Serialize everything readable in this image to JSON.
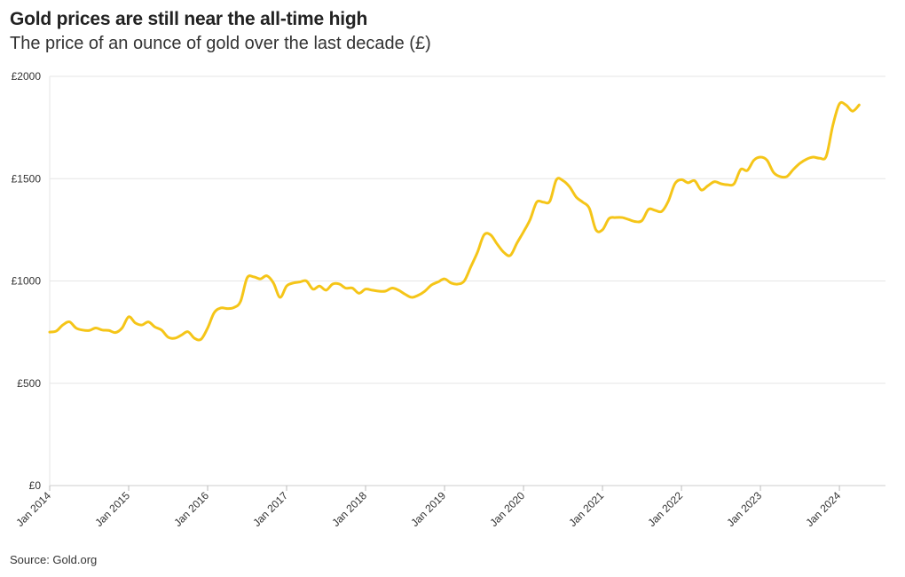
{
  "title": "Gold prices are still near the all-time high",
  "subtitle": "The price of an ounce of gold over the last decade (£)",
  "source": "Source: Gold.org",
  "colors": {
    "line": "#f5c518",
    "grid": "#e6e6e6",
    "text": "#333333"
  },
  "chart_data": {
    "type": "line",
    "title": "Gold prices are still near the all-time high",
    "subtitle": "The price of an ounce of gold over the last decade (£)",
    "xlabel": "",
    "ylabel": "",
    "ylim": [
      0,
      2000
    ],
    "xlim": [
      "2014-01",
      "2024-08"
    ],
    "grid": "horizontal",
    "y_ticks": [
      {
        "value": 0,
        "label": "£0"
      },
      {
        "value": 500,
        "label": "£500"
      },
      {
        "value": 1000,
        "label": "£1000"
      },
      {
        "value": 1500,
        "label": "£1500"
      },
      {
        "value": 2000,
        "label": "£2000"
      }
    ],
    "x_ticks": [
      {
        "date": "2014-01",
        "label": "Jan 2014"
      },
      {
        "date": "2015-01",
        "label": "Jan 2015"
      },
      {
        "date": "2016-01",
        "label": "Jan 2016"
      },
      {
        "date": "2017-01",
        "label": "Jan 2017"
      },
      {
        "date": "2018-01",
        "label": "Jan 2018"
      },
      {
        "date": "2019-01",
        "label": "Jan 2019"
      },
      {
        "date": "2020-01",
        "label": "Jan 2020"
      },
      {
        "date": "2021-01",
        "label": "Jan 2021"
      },
      {
        "date": "2022-01",
        "label": "Jan 2022"
      },
      {
        "date": "2023-01",
        "label": "Jan 2023"
      },
      {
        "date": "2024-01",
        "label": "Jan 2024"
      }
    ],
    "series": [
      {
        "values": [
          [
            "2014-01",
            750
          ],
          [
            "2014-02",
            755
          ],
          [
            "2014-03",
            785
          ],
          [
            "2014-04",
            800
          ],
          [
            "2014-05",
            770
          ],
          [
            "2014-06",
            760
          ],
          [
            "2014-07",
            758
          ],
          [
            "2014-08",
            770
          ],
          [
            "2014-09",
            760
          ],
          [
            "2014-10",
            758
          ],
          [
            "2014-11",
            748
          ],
          [
            "2014-12",
            770
          ],
          [
            "2015-01",
            825
          ],
          [
            "2015-02",
            795
          ],
          [
            "2015-03",
            785
          ],
          [
            "2015-04",
            800
          ],
          [
            "2015-05",
            775
          ],
          [
            "2015-06",
            760
          ],
          [
            "2015-07",
            725
          ],
          [
            "2015-08",
            720
          ],
          [
            "2015-09",
            735
          ],
          [
            "2015-10",
            752
          ],
          [
            "2015-11",
            720
          ],
          [
            "2015-12",
            715
          ],
          [
            "2016-01",
            770
          ],
          [
            "2016-02",
            845
          ],
          [
            "2016-03",
            868
          ],
          [
            "2016-04",
            865
          ],
          [
            "2016-05",
            870
          ],
          [
            "2016-06",
            900
          ],
          [
            "2016-07",
            1015
          ],
          [
            "2016-08",
            1020
          ],
          [
            "2016-09",
            1010
          ],
          [
            "2016-10",
            1025
          ],
          [
            "2016-11",
            990
          ],
          [
            "2016-12",
            920
          ],
          [
            "2017-01",
            975
          ],
          [
            "2017-02",
            990
          ],
          [
            "2017-03",
            995
          ],
          [
            "2017-04",
            1000
          ],
          [
            "2017-05",
            960
          ],
          [
            "2017-06",
            975
          ],
          [
            "2017-07",
            955
          ],
          [
            "2017-08",
            985
          ],
          [
            "2017-09",
            985
          ],
          [
            "2017-10",
            965
          ],
          [
            "2017-11",
            965
          ],
          [
            "2017-12",
            940
          ],
          [
            "2018-01",
            960
          ],
          [
            "2018-02",
            955
          ],
          [
            "2018-03",
            950
          ],
          [
            "2018-04",
            950
          ],
          [
            "2018-05",
            965
          ],
          [
            "2018-06",
            955
          ],
          [
            "2018-07",
            935
          ],
          [
            "2018-08",
            920
          ],
          [
            "2018-09",
            930
          ],
          [
            "2018-10",
            950
          ],
          [
            "2018-11",
            980
          ],
          [
            "2018-12",
            995
          ],
          [
            "2019-01",
            1010
          ],
          [
            "2019-02",
            990
          ],
          [
            "2019-03",
            985
          ],
          [
            "2019-04",
            1000
          ],
          [
            "2019-05",
            1070
          ],
          [
            "2019-06",
            1140
          ],
          [
            "2019-07",
            1225
          ],
          [
            "2019-08",
            1225
          ],
          [
            "2019-09",
            1180
          ],
          [
            "2019-10",
            1140
          ],
          [
            "2019-11",
            1125
          ],
          [
            "2019-12",
            1185
          ],
          [
            "2020-01",
            1240
          ],
          [
            "2020-02",
            1300
          ],
          [
            "2020-03",
            1385
          ],
          [
            "2020-04",
            1385
          ],
          [
            "2020-05",
            1390
          ],
          [
            "2020-06",
            1495
          ],
          [
            "2020-07",
            1490
          ],
          [
            "2020-08",
            1460
          ],
          [
            "2020-09",
            1410
          ],
          [
            "2020-10",
            1385
          ],
          [
            "2020-11",
            1355
          ],
          [
            "2020-12",
            1250
          ],
          [
            "2021-01",
            1250
          ],
          [
            "2021-02",
            1305
          ],
          [
            "2021-03",
            1310
          ],
          [
            "2021-04",
            1310
          ],
          [
            "2021-05",
            1300
          ],
          [
            "2021-06",
            1290
          ],
          [
            "2021-07",
            1295
          ],
          [
            "2021-08",
            1350
          ],
          [
            "2021-09",
            1345
          ],
          [
            "2021-10",
            1340
          ],
          [
            "2021-11",
            1390
          ],
          [
            "2021-12",
            1475
          ],
          [
            "2022-01",
            1495
          ],
          [
            "2022-02",
            1480
          ],
          [
            "2022-03",
            1490
          ],
          [
            "2022-04",
            1445
          ],
          [
            "2022-05",
            1465
          ],
          [
            "2022-06",
            1485
          ],
          [
            "2022-07",
            1475
          ],
          [
            "2022-08",
            1470
          ],
          [
            "2022-09",
            1475
          ],
          [
            "2022-10",
            1545
          ],
          [
            "2022-11",
            1540
          ],
          [
            "2022-12",
            1590
          ],
          [
            "2023-01",
            1605
          ],
          [
            "2023-02",
            1590
          ],
          [
            "2023-03",
            1530
          ],
          [
            "2023-04",
            1510
          ],
          [
            "2023-05",
            1510
          ],
          [
            "2023-06",
            1545
          ],
          [
            "2023-07",
            1575
          ],
          [
            "2023-08",
            1595
          ],
          [
            "2023-09",
            1605
          ],
          [
            "2023-10",
            1600
          ],
          [
            "2023-11",
            1610
          ],
          [
            "2023-12",
            1760
          ],
          [
            "2024-01",
            1865
          ],
          [
            "2024-02",
            1860
          ],
          [
            "2024-03",
            1830
          ],
          [
            "2024-04",
            1860
          ]
        ]
      }
    ]
  }
}
